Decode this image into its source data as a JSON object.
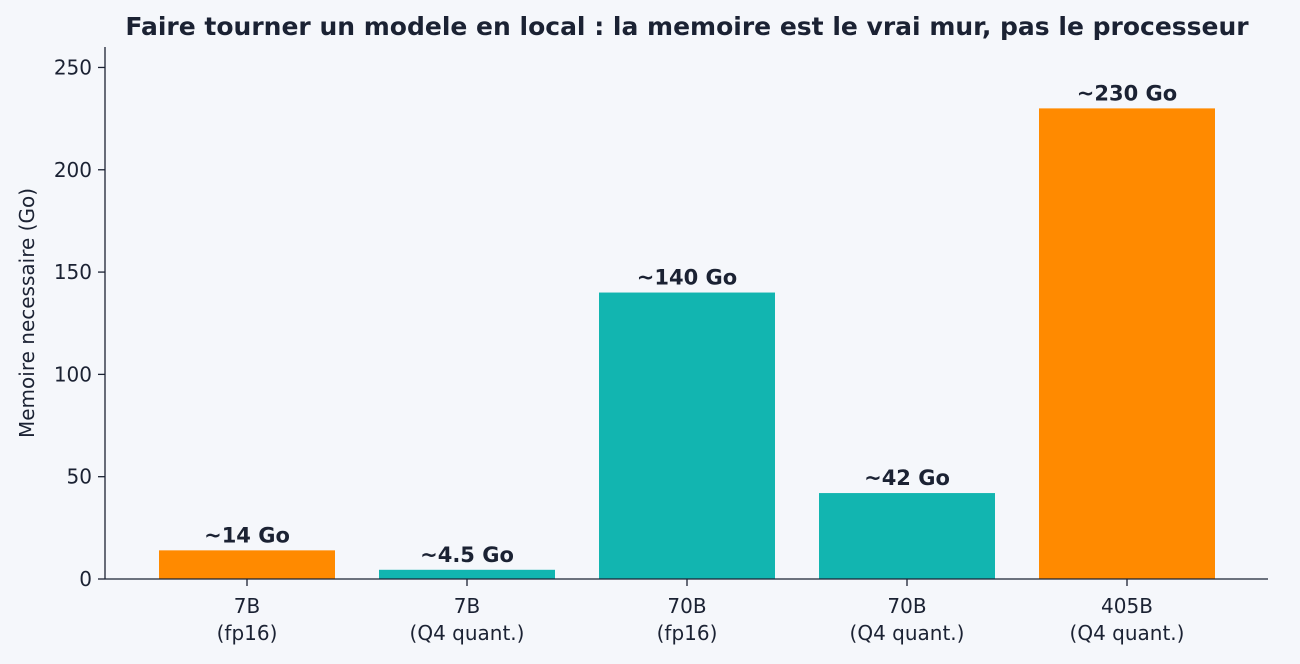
{
  "chart_data": {
    "type": "bar",
    "title": "Faire tourner un modele en local : la memoire est le vrai mur, pas le processeur",
    "xlabel": "",
    "ylabel": "Memoire necessaire (Go)",
    "ylim": [
      0,
      260
    ],
    "yticks": [
      0,
      50,
      100,
      150,
      200,
      250
    ],
    "categories": [
      [
        "7B",
        "(fp16)"
      ],
      [
        "7B",
        "(Q4 quant.)"
      ],
      [
        "70B",
        "(fp16)"
      ],
      [
        "70B",
        "(Q4 quant.)"
      ],
      [
        "405B",
        "(Q4 quant.)"
      ]
    ],
    "values": [
      14,
      4.5,
      140,
      42,
      230
    ],
    "data_labels": [
      "~14 Go",
      "~4.5 Go",
      "~140 Go",
      "~42 Go",
      "~230 Go"
    ],
    "colors": [
      "#ff8a00",
      "#12b5b0",
      "#12b5b0",
      "#12b5b0",
      "#ff8a00"
    ],
    "grid": false,
    "legend": "none"
  }
}
